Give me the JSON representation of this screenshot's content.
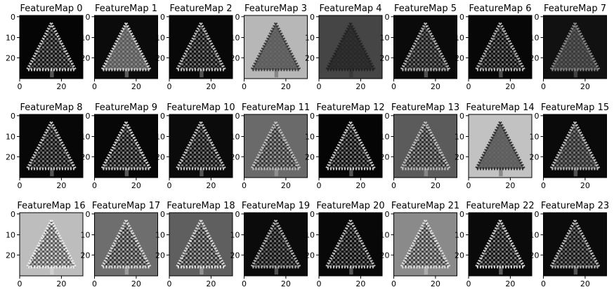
{
  "figure": {
    "panels": [
      {
        "title": "FeatureMap 0",
        "bg": "#050505",
        "edge": "#e6e6e6",
        "fill": "#222222"
      },
      {
        "title": "FeatureMap 1",
        "bg": "#0b0b0b",
        "edge": "#f0f0f0",
        "fill": "#9b9b9b"
      },
      {
        "title": "FeatureMap 2",
        "bg": "#080808",
        "edge": "#dcdcdc",
        "fill": "#1a1a1a"
      },
      {
        "title": "FeatureMap 3",
        "bg": "#b7b7b7",
        "edge": "#2a2a2a",
        "fill": "#141414"
      },
      {
        "title": "FeatureMap 4",
        "bg": "#454545",
        "edge": "#202020",
        "fill": "#121212"
      },
      {
        "title": "FeatureMap 5",
        "bg": "#0a0a0a",
        "edge": "#cfcfcf",
        "fill": "#2a2a2a"
      },
      {
        "title": "FeatureMap 6",
        "bg": "#070707",
        "edge": "#d0d0d0",
        "fill": "#151515"
      },
      {
        "title": "FeatureMap 7",
        "bg": "#111111",
        "edge": "#9a9a9a",
        "fill": "#5c5c5c"
      },
      {
        "title": "FeatureMap 8",
        "bg": "#070707",
        "edge": "#e2e2e2",
        "fill": "#1e1e1e"
      },
      {
        "title": "FeatureMap 9",
        "bg": "#070707",
        "edge": "#f2f2f2",
        "fill": "#1f1f1f"
      },
      {
        "title": "FeatureMap 10",
        "bg": "#0b0b0b",
        "edge": "#e0e0e0",
        "fill": "#1a1a1a"
      },
      {
        "title": "FeatureMap 11",
        "bg": "#6a6a6a",
        "edge": "#d0d0d0",
        "fill": "#0f0f0f"
      },
      {
        "title": "FeatureMap 12",
        "bg": "#050505",
        "edge": "#e6e6e6",
        "fill": "#151515"
      },
      {
        "title": "FeatureMap 13",
        "bg": "#5b5b5b",
        "edge": "#d4d4d4",
        "fill": "#0f0f0f"
      },
      {
        "title": "FeatureMap 14",
        "bg": "#c2c2c2",
        "edge": "#1f1f1f",
        "fill": "#0c0c0c"
      },
      {
        "title": "FeatureMap 15",
        "bg": "#0a0a0a",
        "edge": "#dadada",
        "fill": "#4b4b4b"
      },
      {
        "title": "FeatureMap 16",
        "bg": "#bdbdbd",
        "edge": "#f4f4f4",
        "fill": "#0c0c0c"
      },
      {
        "title": "FeatureMap 17",
        "bg": "#6e6e6e",
        "edge": "#f0f0f0",
        "fill": "#0f0f0f"
      },
      {
        "title": "FeatureMap 18",
        "bg": "#5f5f5f",
        "edge": "#f0f0f0",
        "fill": "#111111"
      },
      {
        "title": "FeatureMap 19",
        "bg": "#0b0b0b",
        "edge": "#cfcfcf",
        "fill": "#1a1a1a"
      },
      {
        "title": "FeatureMap 20",
        "bg": "#080808",
        "edge": "#dcdcdc",
        "fill": "#0c0c0c"
      },
      {
        "title": "FeatureMap 21",
        "bg": "#8a8a8a",
        "edge": "#efefef",
        "fill": "#0d0d0d"
      },
      {
        "title": "FeatureMap 22",
        "bg": "#0a0a0a",
        "edge": "#f0f0f0",
        "fill": "#1a1a1a"
      },
      {
        "title": "FeatureMap 23",
        "bg": "#0b0b0b",
        "edge": "#d8d8d8",
        "fill": "#222222"
      }
    ],
    "x_ticks": [
      "0",
      "20"
    ],
    "y_ticks": [
      "0",
      "10",
      "20"
    ]
  }
}
